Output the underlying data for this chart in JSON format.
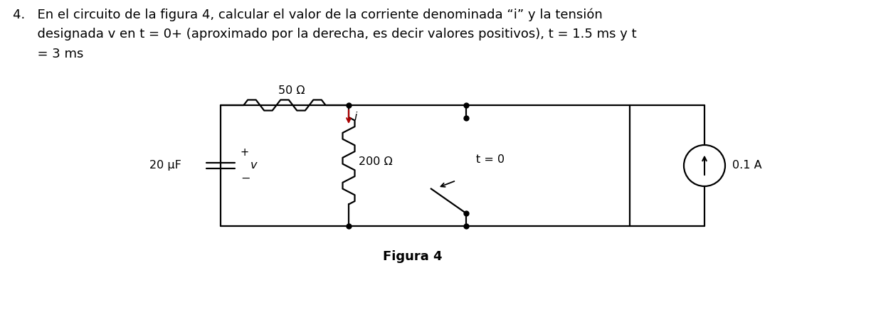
{
  "line1": "4.   En el circuito de la figura 4, calcular el valor de la corriente denominada “i” y la tensión",
  "line2": "      designada v en t = 0+ (aproximado por la derecha, es decir valores positivos), t = 1.5 ms y t",
  "line3": "      = 3 ms",
  "figura_label": "Figura 4",
  "label_50ohm": "50 Ω",
  "label_200ohm": "200 Ω",
  "label_20uF": "20 μF",
  "label_v": "v",
  "label_i": "i",
  "label_t0": "t = 0",
  "label_01A": "0.1 A",
  "label_plus": "+",
  "label_minus": "−",
  "bg_color": "#ffffff",
  "text_color": "#000000",
  "line_color": "#000000",
  "arrow_color": "#aa0000",
  "font_size_title": 13,
  "font_size_labels": 11.5,
  "font_size_small": 10.5
}
